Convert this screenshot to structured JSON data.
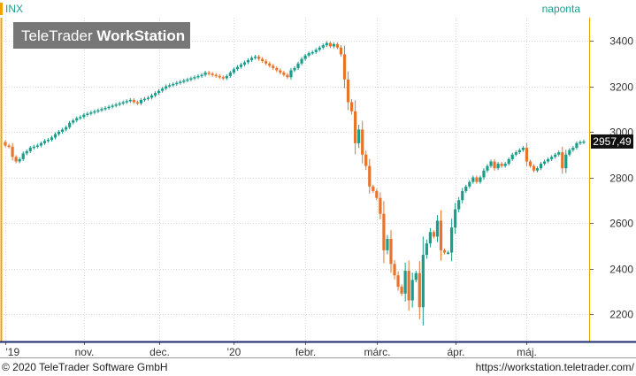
{
  "header": {
    "symbol": "INX",
    "interval": "naponta"
  },
  "watermark": {
    "brand": "TeleTrader",
    "product": "WorkStation"
  },
  "footer": {
    "copyright": "© 2020 TeleTrader Software GmbH",
    "url": "https://workstation.teletrader.com/"
  },
  "colors": {
    "up": "#1a9e8c",
    "down": "#e8732a",
    "grid": "#d8d8d8",
    "axis_line": "#f0a300",
    "axis_bottom": "#1a2a6c",
    "last_price_bg": "#111111",
    "watermark_bg": "#777777",
    "interval_text": "#1a9e8c",
    "symbol_text": "#1a9e8c"
  },
  "last_price": {
    "label": "2957,49",
    "value": 2957.49
  },
  "chart_data": {
    "type": "candlestick",
    "ylim": [
      2100,
      3500
    ],
    "y_ticks": [
      {
        "value": 2200,
        "label": "2200"
      },
      {
        "value": 2400,
        "label": "2400"
      },
      {
        "value": 2600,
        "label": "2600"
      },
      {
        "value": 2800,
        "label": "2800"
      },
      {
        "value": 3000,
        "label": "3000"
      },
      {
        "value": 3200,
        "label": "3200"
      },
      {
        "value": 3400,
        "label": "3400"
      }
    ],
    "x_ticks": [
      {
        "label": "'19",
        "index": 0
      },
      {
        "label": "nov.",
        "index": 22
      },
      {
        "label": "dec.",
        "index": 43
      },
      {
        "label": "'20",
        "index": 64
      },
      {
        "label": "febr.",
        "index": 84
      },
      {
        "label": "márc.",
        "index": 104
      },
      {
        "label": "ápr.",
        "index": 126
      },
      {
        "label": "máj.",
        "index": 146
      }
    ],
    "n_slots": 163,
    "close": [
      2940,
      2935,
      2890,
      2870,
      2880,
      2905,
      2915,
      2930,
      2935,
      2940,
      2950,
      2960,
      2965,
      2975,
      2990,
      3000,
      3010,
      3020,
      3040,
      3050,
      3060,
      3065,
      3075,
      3080,
      3085,
      3090,
      3095,
      3100,
      3105,
      3110,
      3115,
      3120,
      3125,
      3130,
      3135,
      3140,
      3130,
      3125,
      3140,
      3145,
      3150,
      3160,
      3170,
      3180,
      3190,
      3200,
      3205,
      3210,
      3215,
      3220,
      3225,
      3230,
      3235,
      3240,
      3245,
      3250,
      3260,
      3255,
      3250,
      3245,
      3240,
      3235,
      3245,
      3260,
      3275,
      3285,
      3295,
      3305,
      3315,
      3325,
      3330,
      3320,
      3310,
      3300,
      3290,
      3280,
      3270,
      3260,
      3250,
      3240,
      3270,
      3280,
      3300,
      3320,
      3335,
      3345,
      3350,
      3360,
      3370,
      3380,
      3390,
      3375,
      3385,
      3370,
      3340,
      3230,
      3130,
      3090,
      2950,
      3010,
      2900,
      2850,
      2760,
      2740,
      2710,
      2640,
      2480,
      2530,
      2420,
      2370,
      2320,
      2290,
      2390,
      2260,
      2350,
      2380,
      2230,
      2460,
      2510,
      2560,
      2540,
      2610,
      2480,
      2470,
      2470,
      2580,
      2660,
      2700,
      2740,
      2760,
      2780,
      2800,
      2780,
      2800,
      2830,
      2850,
      2870,
      2840,
      2860,
      2850,
      2860,
      2880,
      2900,
      2910,
      2920,
      2930,
      2870,
      2850,
      2830,
      2840,
      2860,
      2870,
      2880,
      2890,
      2900,
      2910,
      2840,
      2900,
      2920,
      2930,
      2950,
      2955,
      2957.49
    ]
  }
}
